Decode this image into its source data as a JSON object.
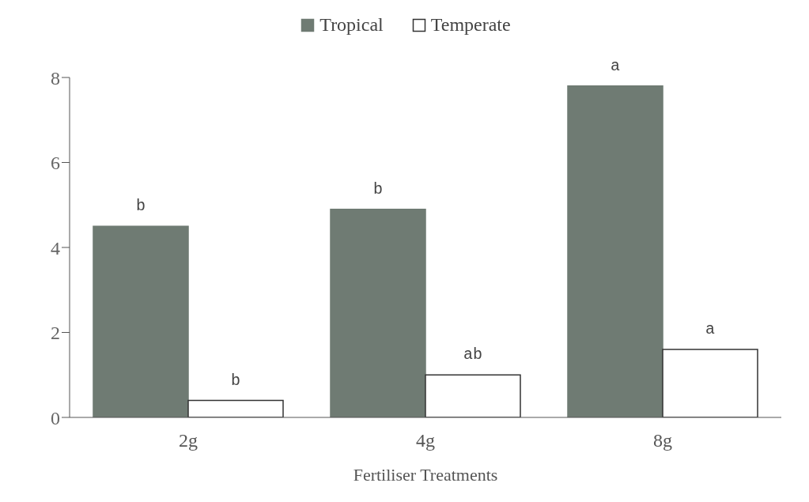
{
  "chart_data": {
    "type": "bar",
    "xlabel": "Fertiliser Treatments",
    "categories": [
      "2g",
      "4g",
      "8g"
    ],
    "series": [
      {
        "name": "Tropical",
        "color": "#6f7b73",
        "values": [
          4.5,
          4.9,
          7.8
        ],
        "value_labels": [
          "b",
          "b",
          "a"
        ]
      },
      {
        "name": "Temperate",
        "color": "#ffffff",
        "values": [
          0.4,
          1.0,
          1.6
        ],
        "value_labels": [
          "b",
          "ab",
          "a"
        ]
      }
    ],
    "ylim": [
      0,
      8
    ],
    "yticks": [
      0,
      2,
      4,
      6,
      8
    ],
    "grid": false,
    "legend": "top"
  }
}
